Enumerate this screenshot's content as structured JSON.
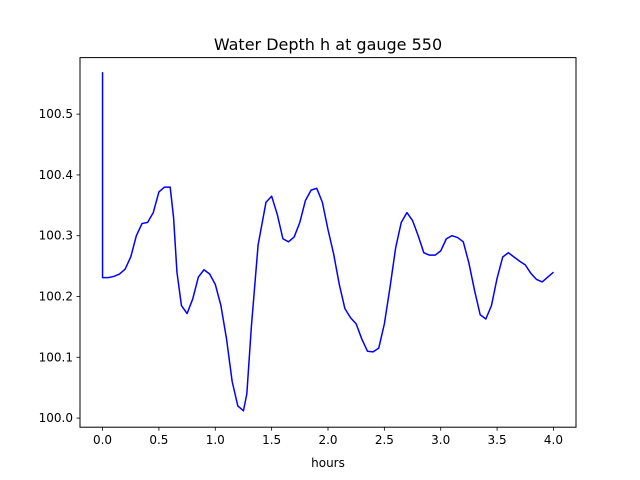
{
  "chart_data": {
    "type": "line",
    "title": "Water Depth h at gauge 550",
    "xlabel": "hours",
    "ylabel": "",
    "xlim": [
      -0.2,
      4.2
    ],
    "ylim": [
      99.985,
      100.593
    ],
    "xticks": [
      0.0,
      0.5,
      1.0,
      1.5,
      2.0,
      2.5,
      3.0,
      3.5,
      4.0
    ],
    "xtick_labels": [
      "0.0",
      "0.5",
      "1.0",
      "1.5",
      "2.0",
      "2.5",
      "3.0",
      "3.5",
      "4.0"
    ],
    "yticks": [
      100.0,
      100.1,
      100.2,
      100.3,
      100.4,
      100.5
    ],
    "ytick_labels": [
      "100.0",
      "100.1",
      "100.2",
      "100.3",
      "100.4",
      "100.5"
    ],
    "grid": false,
    "series": [
      {
        "color": "#0000ff",
        "x": [
          0.0,
          0.0,
          0.0,
          0.05,
          0.1,
          0.15,
          0.2,
          0.25,
          0.3,
          0.35,
          0.4,
          0.45,
          0.5,
          0.55,
          0.6,
          0.63,
          0.66,
          0.7,
          0.75,
          0.8,
          0.85,
          0.9,
          0.95,
          1.0,
          1.05,
          1.1,
          1.15,
          1.2,
          1.25,
          1.28,
          1.32,
          1.38,
          1.45,
          1.5,
          1.55,
          1.6,
          1.65,
          1.7,
          1.75,
          1.8,
          1.85,
          1.9,
          1.95,
          2.0,
          2.05,
          2.1,
          2.15,
          2.2,
          2.25,
          2.3,
          2.35,
          2.4,
          2.45,
          2.5,
          2.55,
          2.6,
          2.65,
          2.7,
          2.75,
          2.8,
          2.85,
          2.9,
          2.95,
          3.0,
          3.05,
          3.1,
          3.15,
          3.2,
          3.25,
          3.3,
          3.35,
          3.4,
          3.45,
          3.5,
          3.55,
          3.6,
          3.65,
          3.7,
          3.75,
          3.8,
          3.85,
          3.9,
          3.95,
          4.0
        ],
        "y": [
          100.231,
          100.568,
          100.231,
          100.231,
          100.233,
          100.237,
          100.245,
          100.265,
          100.3,
          100.32,
          100.322,
          100.338,
          100.372,
          100.38,
          100.38,
          100.33,
          100.24,
          100.185,
          100.172,
          100.196,
          100.232,
          100.244,
          100.237,
          100.22,
          100.185,
          100.13,
          100.06,
          100.02,
          100.012,
          100.04,
          100.15,
          100.285,
          100.355,
          100.365,
          100.335,
          100.295,
          100.29,
          100.298,
          100.322,
          100.358,
          100.375,
          100.378,
          100.355,
          100.31,
          100.27,
          100.22,
          100.18,
          100.165,
          100.155,
          100.13,
          100.11,
          100.109,
          100.115,
          100.155,
          100.215,
          100.28,
          100.322,
          100.338,
          100.325,
          100.3,
          100.272,
          100.268,
          100.268,
          100.275,
          100.295,
          100.3,
          100.297,
          100.29,
          100.255,
          100.21,
          100.17,
          100.163,
          100.185,
          100.23,
          100.265,
          100.272,
          100.265,
          100.258,
          100.252,
          100.238,
          100.228,
          100.224,
          100.232,
          100.24
        ]
      }
    ]
  }
}
